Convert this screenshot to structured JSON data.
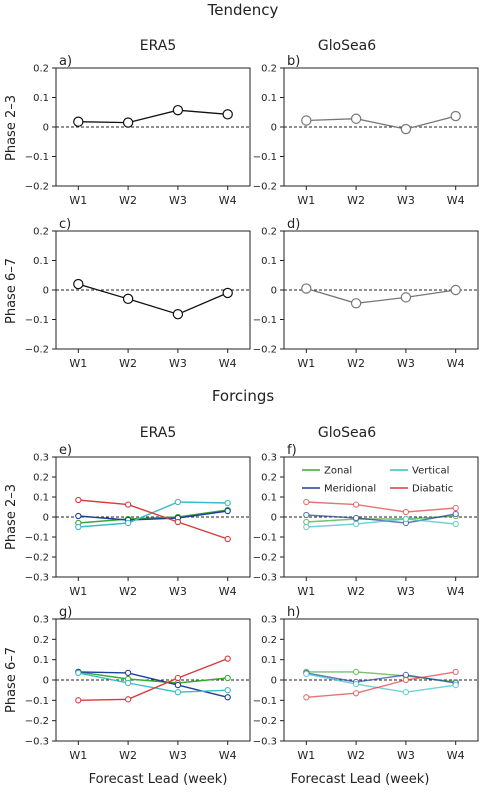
{
  "section_titles": {
    "tendency": "Tendency",
    "forcings": "Forcings"
  },
  "column_titles": {
    "era5": "ERA5",
    "glosea6": "GloSea6"
  },
  "row_labels": {
    "phase23": "Phase 2–3",
    "phase67": "Phase 6–7"
  },
  "xlabel": "Forecast Lead (week)",
  "colors": {
    "era5_line": "#111111",
    "glosea_line": "#777777",
    "zonal": "#3aa832",
    "meridional": "#1f3f99",
    "vertical": "#3bbcc4",
    "diabatic": "#d93a3a"
  },
  "chart_data": [
    {
      "panel": "a)",
      "type": "line",
      "model": "ERA5",
      "phase": "Phase 2–3",
      "categories": [
        "W1",
        "W2",
        "W3",
        "W4"
      ],
      "yticks": [
        "0.2",
        "0.1",
        "0",
        "−0.1",
        "−0.2"
      ],
      "ylim": [
        -0.2,
        0.2
      ],
      "series": [
        {
          "values": [
            0.018,
            0.015,
            0.057,
            0.043
          ],
          "color": "#111111"
        }
      ]
    },
    {
      "panel": "b)",
      "type": "line",
      "model": "GloSea6",
      "phase": "Phase 2–3",
      "categories": [
        "W1",
        "W2",
        "W3",
        "W4"
      ],
      "yticks": [
        "0.2",
        "0.1",
        "0",
        "−0.1",
        "−0.2"
      ],
      "ylim": [
        -0.2,
        0.2
      ],
      "series": [
        {
          "values": [
            0.022,
            0.028,
            -0.007,
            0.037
          ],
          "color": "#777777"
        }
      ]
    },
    {
      "panel": "c)",
      "type": "line",
      "model": "ERA5",
      "phase": "Phase 6–7",
      "categories": [
        "W1",
        "W2",
        "W3",
        "W4"
      ],
      "yticks": [
        "0.2",
        "0.1",
        "0",
        "−0.1",
        "−0.2"
      ],
      "ylim": [
        -0.2,
        0.2
      ],
      "series": [
        {
          "values": [
            0.02,
            -0.03,
            -0.082,
            -0.01
          ],
          "color": "#111111"
        }
      ]
    },
    {
      "panel": "d)",
      "type": "line",
      "model": "GloSea6",
      "phase": "Phase 6–7",
      "categories": [
        "W1",
        "W2",
        "W3",
        "W4"
      ],
      "yticks": [
        "0.2",
        "0.1",
        "0",
        "−0.1",
        "−0.2"
      ],
      "ylim": [
        -0.2,
        0.2
      ],
      "series": [
        {
          "values": [
            0.005,
            -0.045,
            -0.025,
            0.0
          ],
          "color": "#777777"
        }
      ]
    },
    {
      "panel": "e)",
      "type": "line",
      "model": "ERA5",
      "phase": "Phase 2–3",
      "categories": [
        "W1",
        "W2",
        "W3",
        "W4"
      ],
      "yticks": [
        "0.3",
        "0.2",
        "0.1",
        "0",
        "−0.1",
        "−0.2",
        "−0.3"
      ],
      "ylim": [
        -0.3,
        0.3
      ],
      "series": [
        {
          "name": "Zonal",
          "values": [
            -0.03,
            -0.01,
            0.0,
            0.035
          ],
          "color": "#3aa832"
        },
        {
          "name": "Meridional",
          "values": [
            0.005,
            -0.015,
            -0.005,
            0.03
          ],
          "color": "#1f3f99"
        },
        {
          "name": "Vertical",
          "values": [
            -0.05,
            -0.03,
            0.075,
            0.07
          ],
          "color": "#3bbcc4"
        },
        {
          "name": "Diabatic",
          "values": [
            0.085,
            0.062,
            -0.025,
            -0.11
          ],
          "color": "#d93a3a"
        }
      ]
    },
    {
      "panel": "f)",
      "type": "line",
      "model": "GloSea6",
      "phase": "Phase 2–3",
      "categories": [
        "W1",
        "W2",
        "W3",
        "W4"
      ],
      "yticks": [
        "0.3",
        "0.2",
        "0.1",
        "0",
        "−0.1",
        "−0.2",
        "−0.3"
      ],
      "ylim": [
        -0.3,
        0.3
      ],
      "legend": {
        "placement": "top-right",
        "entries": [
          "Zonal",
          "Vertical",
          "Meridional",
          "Diabatic"
        ]
      },
      "series": [
        {
          "name": "Zonal",
          "values": [
            -0.025,
            -0.01,
            -0.01,
            0.005
          ],
          "color": "#3aa832"
        },
        {
          "name": "Meridional",
          "values": [
            0.01,
            -0.005,
            -0.03,
            0.015
          ],
          "color": "#1f3f99"
        },
        {
          "name": "Vertical",
          "values": [
            -0.05,
            -0.035,
            -0.01,
            -0.035
          ],
          "color": "#3bbcc4"
        },
        {
          "name": "Diabatic",
          "values": [
            0.075,
            0.062,
            0.025,
            0.045
          ],
          "color": "#d93a3a"
        }
      ]
    },
    {
      "panel": "g)",
      "type": "line",
      "model": "ERA5",
      "phase": "Phase 6–7",
      "categories": [
        "W1",
        "W2",
        "W3",
        "W4"
      ],
      "yticks": [
        "0.3",
        "0.2",
        "0.1",
        "0",
        "−0.1",
        "−0.2",
        "−0.3"
      ],
      "ylim": [
        -0.3,
        0.3
      ],
      "series": [
        {
          "name": "Zonal",
          "values": [
            0.04,
            0.005,
            -0.015,
            0.01
          ],
          "color": "#3aa832"
        },
        {
          "name": "Meridional",
          "values": [
            0.04,
            0.035,
            -0.025,
            -0.085
          ],
          "color": "#1f3f99"
        },
        {
          "name": "Vertical",
          "values": [
            0.035,
            -0.015,
            -0.06,
            -0.05
          ],
          "color": "#3bbcc4"
        },
        {
          "name": "Diabatic",
          "values": [
            -0.1,
            -0.095,
            0.01,
            0.105
          ],
          "color": "#d93a3a"
        }
      ]
    },
    {
      "panel": "h)",
      "type": "line",
      "model": "GloSea6",
      "phase": "Phase 6–7",
      "categories": [
        "W1",
        "W2",
        "W3",
        "W4"
      ],
      "yticks": [
        "0.3",
        "0.2",
        "0.1",
        "0",
        "−0.1",
        "−0.2",
        "−0.3"
      ],
      "ylim": [
        -0.3,
        0.3
      ],
      "series": [
        {
          "name": "Zonal",
          "values": [
            0.04,
            0.04,
            0.02,
            -0.01
          ],
          "color": "#3aa832"
        },
        {
          "name": "Meridional",
          "values": [
            0.035,
            -0.01,
            0.025,
            -0.015
          ],
          "color": "#1f3f99"
        },
        {
          "name": "Vertical",
          "values": [
            0.03,
            -0.02,
            -0.06,
            -0.025
          ],
          "color": "#3bbcc4"
        },
        {
          "name": "Diabatic",
          "values": [
            -0.085,
            -0.065,
            0.0,
            0.04
          ],
          "color": "#d93a3a"
        }
      ]
    }
  ]
}
